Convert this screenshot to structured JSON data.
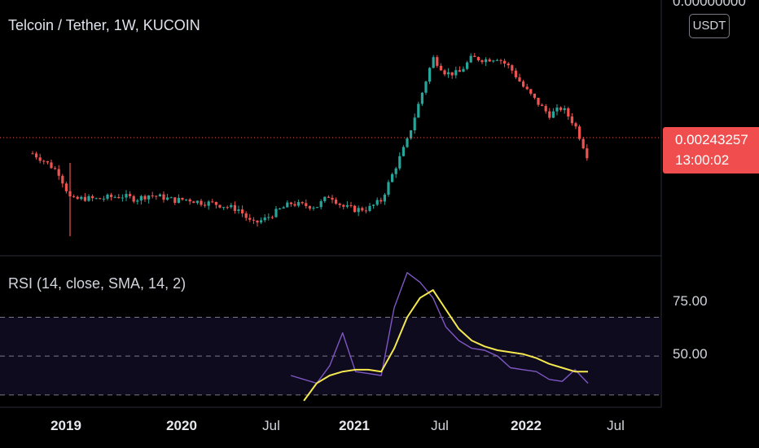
{
  "header": {
    "title": "Telcoin / Tether, 1W, KUCOIN",
    "currency_button": "USDT",
    "top_price_label": "0.00000000"
  },
  "price_badge": {
    "price": "0.00243257",
    "countdown": "13:00:02",
    "color": "#f04e4e"
  },
  "rsi_panel": {
    "label": "RSI (14, close, SMA, 14, 2)",
    "ticks": [
      "75.00",
      "50.00"
    ],
    "rsi_color": "#7e57c2",
    "sma_color": "#f5e850",
    "band_fill": "#0f0b1f"
  },
  "x_axis": {
    "labels": [
      {
        "text": "2019",
        "bold": true
      },
      {
        "text": "2020",
        "bold": true
      },
      {
        "text": "Jul",
        "bold": false
      },
      {
        "text": "2021",
        "bold": true
      },
      {
        "text": "Jul",
        "bold": false
      },
      {
        "text": "2022",
        "bold": true
      },
      {
        "text": "Jul",
        "bold": false
      }
    ]
  },
  "colors": {
    "up": "#26a69a",
    "down": "#ef5350",
    "background": "#000000"
  },
  "chart_data": [
    {
      "type": "candlestick",
      "title": "Telcoin / Tether, 1W, KUCOIN",
      "x": [
        "2018-10",
        "2018-11",
        "2018-12",
        "2019-01",
        "2019-02",
        "2019-03",
        "2019-04",
        "2019-05",
        "2019-06",
        "2019-07",
        "2019-08",
        "2019-09",
        "2019-10",
        "2019-11",
        "2019-12",
        "2020-01",
        "2020-02",
        "2020-03",
        "2020-04",
        "2020-05",
        "2020-06",
        "2020-07",
        "2020-08",
        "2020-09",
        "2020-10",
        "2020-11",
        "2020-12",
        "2021-01",
        "2021-02",
        "2021-03",
        "2021-04",
        "2021-05",
        "2021-06",
        "2021-07",
        "2021-08",
        "2021-09",
        "2021-10",
        "2021-11",
        "2021-12",
        "2022-01",
        "2022-02",
        "2022-03",
        "2022-04",
        "2022-05"
      ],
      "price_level": 0.00243257,
      "relative_price": [
        0.78,
        0.7,
        0.6,
        0.33,
        0.35,
        0.34,
        0.36,
        0.37,
        0.34,
        0.38,
        0.36,
        0.33,
        0.34,
        0.31,
        0.3,
        0.27,
        0.24,
        0.1,
        0.15,
        0.23,
        0.3,
        0.28,
        0.27,
        0.38,
        0.27,
        0.24,
        0.25,
        0.33,
        0.62,
        0.9,
        1.3,
        1.7,
        1.55,
        1.55,
        1.7,
        1.68,
        1.7,
        1.6,
        1.42,
        1.28,
        1.15,
        1.22,
        1.05,
        0.74
      ]
    },
    {
      "type": "line",
      "title": "RSI (14, close, SMA, 14, 2)",
      "x": [
        "2020-06",
        "2020-07",
        "2020-08",
        "2020-09",
        "2020-10",
        "2020-11",
        "2020-12",
        "2021-01",
        "2021-02",
        "2021-03",
        "2021-04",
        "2021-05",
        "2021-06",
        "2021-07",
        "2021-08",
        "2021-09",
        "2021-10",
        "2021-11",
        "2021-12",
        "2022-01",
        "2022-02",
        "2022-03",
        "2022-04",
        "2022-05"
      ],
      "ylim": [
        27,
        100
      ],
      "reference_lines": [
        30,
        50,
        70
      ],
      "series": [
        {
          "values": [
            40,
            38,
            36,
            45,
            62,
            42,
            41,
            40,
            75,
            93,
            88,
            80,
            65,
            58,
            54,
            53,
            50,
            44,
            43,
            42,
            38,
            37,
            43,
            36
          ]
        },
        {
          "values": [
            null,
            27,
            36,
            40,
            42,
            43,
            43,
            42,
            54,
            70,
            80,
            84,
            74,
            64,
            58,
            55,
            53,
            52,
            51,
            49,
            46,
            44,
            42,
            42
          ]
        }
      ]
    }
  ]
}
